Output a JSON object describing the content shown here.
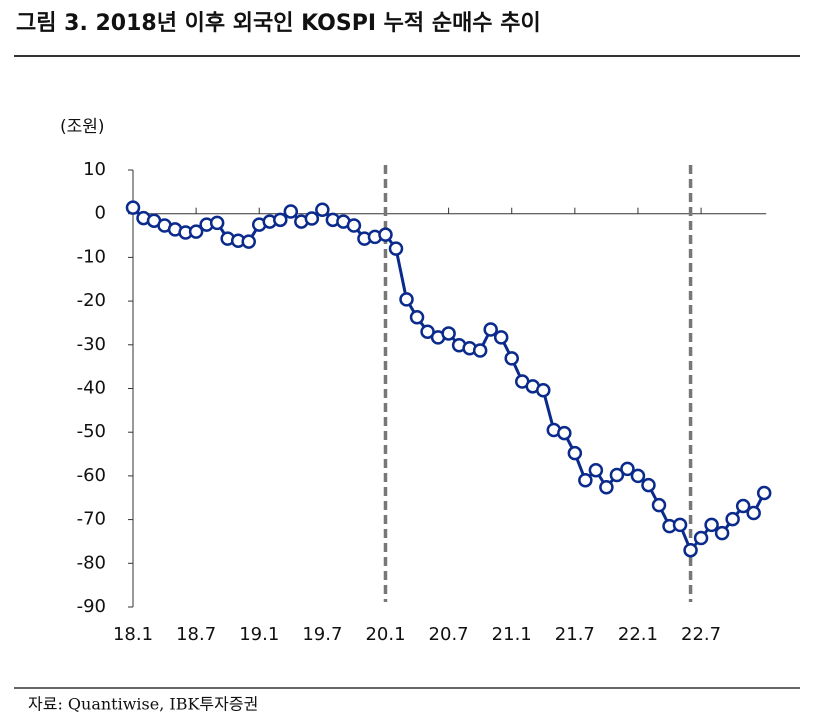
{
  "chart_data": {
    "type": "line",
    "title": "그림 3. 2018년 이후 외국인 KOSPI 누적 순매수 추이",
    "y_label": "(조원)",
    "source": "자료: Quantiwise, IBK투자증권",
    "categories": [
      "18.1",
      null,
      null,
      null,
      null,
      null,
      "18.7",
      null,
      null,
      null,
      null,
      null,
      "19.1",
      null,
      null,
      null,
      null,
      null,
      "19.7",
      null,
      null,
      null,
      null,
      null,
      "20.1",
      null,
      null,
      null,
      null,
      null,
      "20.7",
      null,
      null,
      null,
      null,
      null,
      "21.1",
      null,
      null,
      null,
      null,
      null,
      "21.7",
      null,
      null,
      null,
      null,
      null,
      "22.1",
      null,
      null,
      null,
      null,
      null,
      "22.7",
      null,
      null,
      null,
      null,
      null,
      null
    ],
    "series": [
      {
        "color": "#0a2a8c",
        "values": [
          1.4,
          -1,
          -1.6,
          -2.7,
          -3.6,
          -4.3,
          -4.1,
          -2.5,
          -2.1,
          -5.7,
          -6.2,
          -6.4,
          -2.5,
          -1.8,
          -1.4,
          0.5,
          -1.8,
          -1.1,
          0.9,
          -1.4,
          -1.8,
          -2.7,
          -5.7,
          -5.3,
          -4.8,
          -8,
          -19.6,
          -23.7,
          -27,
          -28.3,
          -27.4,
          -30.1,
          -30.8,
          -31.3,
          -26.5,
          -28.3,
          -33.1,
          -38.4,
          -39.5,
          -40.4,
          -49.5,
          -50.2,
          -54.8,
          -61,
          -58.7,
          -62.6,
          -59.8,
          -58.4,
          -60,
          -62.1,
          -66.7,
          -71.5,
          -71.2,
          -77,
          -74.2,
          -71.2,
          -73.1,
          -69.9,
          -66.9,
          -68.5,
          -63.9
        ]
      }
    ],
    "vlines": [
      24,
      53
    ],
    "ylim": [
      -90,
      10
    ],
    "yticks": [
      10,
      0,
      -10,
      -20,
      -30,
      -40,
      -50,
      -60,
      -70,
      -80,
      -90
    ]
  }
}
